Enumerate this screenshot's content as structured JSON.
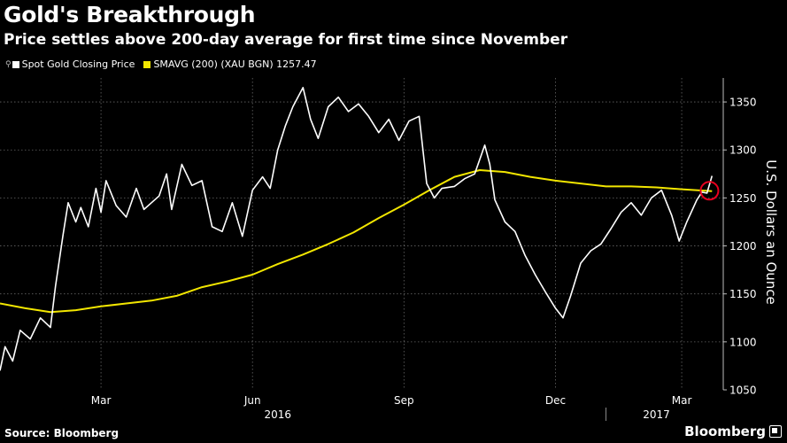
{
  "title": "Gold's Breakthrough",
  "subtitle": "Price settles above 200-day average for first time since November",
  "legend": {
    "marker_glyph": "⚲",
    "gold_label": "Spot Gold Closing Price",
    "sma_label": "SMAVG (200) (XAU BGN) 1257.47"
  },
  "source": "Source: Bloomberg",
  "brand": "Bloomberg",
  "colors": {
    "gold_line": "#ffffff",
    "sma_line": "#f2e600",
    "highlight": "#e8001f",
    "grid": "#666666"
  },
  "chart_data": {
    "type": "line",
    "title": "Gold's Breakthrough",
    "ylabel": "U.S. Dollars an Ounce",
    "ylim": [
      1050,
      1375
    ],
    "yticks": [
      1050,
      1100,
      1150,
      1200,
      1250,
      1300,
      1350
    ],
    "ytick_labels": [
      "1050",
      "1100",
      "1150",
      "1200",
      "1250",
      "1300",
      "1350"
    ],
    "xlim": [
      0,
      14.2
    ],
    "xticks": [
      2,
      5,
      8,
      11,
      13.5
    ],
    "xtick_labels": [
      "Mar",
      "Jun",
      "Sep",
      "Dec",
      "Mar"
    ],
    "year_labels": [
      {
        "x": 5.5,
        "label": "2016"
      },
      {
        "x": 13,
        "label": "2017"
      }
    ],
    "year_divider_x": 12,
    "series": [
      {
        "name": "Spot Gold Closing Price",
        "x": [
          0,
          0.1,
          0.25,
          0.4,
          0.6,
          0.8,
          1.0,
          1.1,
          1.25,
          1.35,
          1.5,
          1.6,
          1.75,
          1.9,
          2.0,
          2.1,
          2.3,
          2.5,
          2.7,
          2.85,
          3.0,
          3.15,
          3.3,
          3.4,
          3.6,
          3.8,
          4.0,
          4.2,
          4.4,
          4.6,
          4.8,
          5.0,
          5.2,
          5.35,
          5.5,
          5.65,
          5.8,
          5.9,
          6.0,
          6.15,
          6.3,
          6.5,
          6.7,
          6.9,
          7.1,
          7.3,
          7.5,
          7.7,
          7.9,
          8.1,
          8.3,
          8.45,
          8.6,
          8.75,
          9.0,
          9.2,
          9.4,
          9.6,
          9.7,
          9.8,
          10.0,
          10.2,
          10.4,
          10.6,
          10.8,
          11.0,
          11.15,
          11.3,
          11.5,
          11.7,
          11.9,
          12.1,
          12.3,
          12.5,
          12.7,
          12.9,
          13.1,
          13.3,
          13.45,
          13.6,
          13.8,
          13.9,
          14.0,
          14.1
        ],
        "values": [
          1070,
          1095,
          1080,
          1112,
          1103,
          1125,
          1115,
          1158,
          1212,
          1245,
          1225,
          1240,
          1220,
          1260,
          1235,
          1268,
          1242,
          1230,
          1260,
          1238,
          1245,
          1252,
          1275,
          1238,
          1285,
          1263,
          1268,
          1220,
          1215,
          1245,
          1210,
          1258,
          1272,
          1260,
          1300,
          1325,
          1345,
          1355,
          1365,
          1332,
          1312,
          1345,
          1355,
          1340,
          1348,
          1335,
          1318,
          1332,
          1310,
          1330,
          1335,
          1265,
          1250,
          1260,
          1262,
          1270,
          1275,
          1305,
          1285,
          1248,
          1225,
          1215,
          1190,
          1170,
          1152,
          1135,
          1125,
          1148,
          1182,
          1195,
          1202,
          1218,
          1235,
          1245,
          1232,
          1250,
          1258,
          1232,
          1205,
          1225,
          1248,
          1256,
          1255,
          1273
        ]
      },
      {
        "name": "SMAVG (200)",
        "x": [
          0,
          0.5,
          1.0,
          1.5,
          2.0,
          2.5,
          3.0,
          3.5,
          4.0,
          4.5,
          5.0,
          5.5,
          6.0,
          6.5,
          7.0,
          7.5,
          8.0,
          8.5,
          9.0,
          9.5,
          10.0,
          10.5,
          11.0,
          11.5,
          12.0,
          12.5,
          13.0,
          13.5,
          14.1
        ],
        "values": [
          1140,
          1135,
          1131,
          1133,
          1137,
          1140,
          1143,
          1148,
          1157,
          1163,
          1170,
          1181,
          1191,
          1202,
          1214,
          1229,
          1243,
          1258,
          1272,
          1279,
          1277,
          1272,
          1268,
          1265,
          1262,
          1262,
          1261,
          1259,
          1257
        ]
      }
    ],
    "highlight": {
      "x": 14.05,
      "value": 1257.47
    }
  }
}
